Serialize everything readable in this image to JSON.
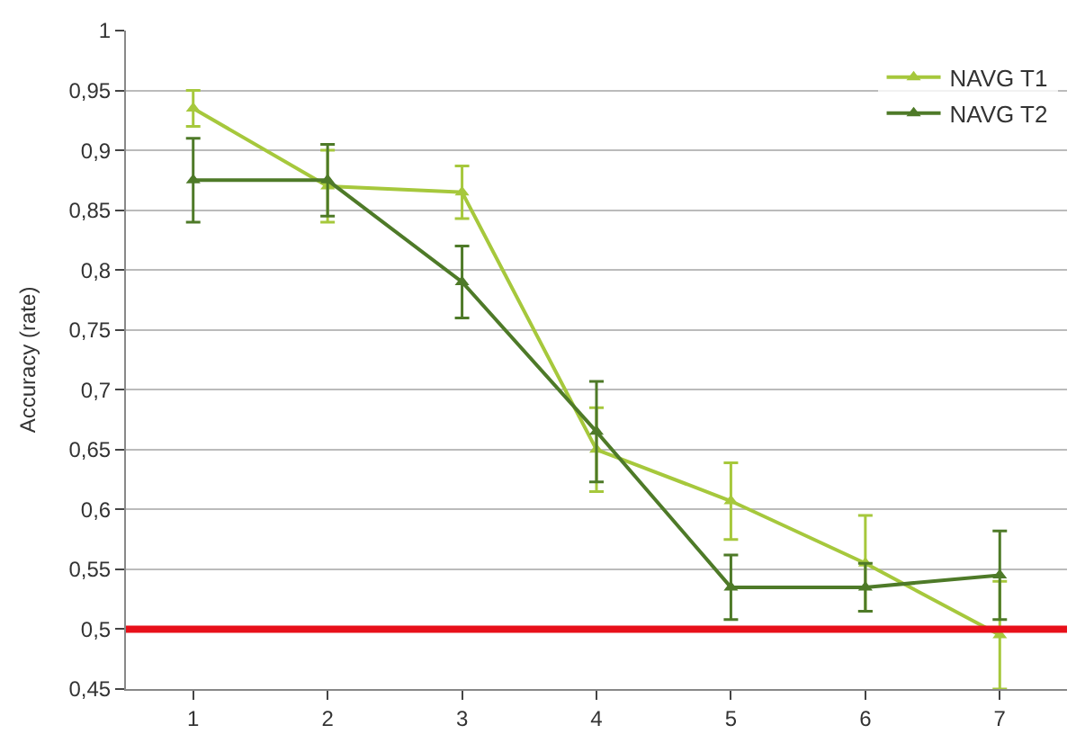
{
  "chart_data": {
    "type": "line",
    "ylabel": "Accuracy (rate)",
    "categories": [
      "1",
      "2",
      "3",
      "4",
      "5",
      "6",
      "7"
    ],
    "series": [
      {
        "name": "NAVG T1",
        "color": "#a6c83c",
        "values": [
          0.935,
          0.87,
          0.865,
          0.65,
          0.607,
          0.555,
          0.495
        ],
        "errors": [
          0.015,
          0.03,
          0.022,
          0.035,
          0.032,
          0.04,
          0.045
        ]
      },
      {
        "name": "NAVG T2",
        "color": "#4e7a28",
        "values": [
          0.875,
          0.875,
          0.79,
          0.665,
          0.535,
          0.535,
          0.545
        ],
        "errors": [
          0.035,
          0.03,
          0.03,
          0.042,
          0.027,
          0.02,
          0.037
        ]
      }
    ],
    "ylim": [
      0.45,
      1
    ],
    "yticks": [
      {
        "value": 0.45,
        "label": "0,45"
      },
      {
        "value": 0.5,
        "label": "0,5"
      },
      {
        "value": 0.55,
        "label": "0,55"
      },
      {
        "value": 0.6,
        "label": "0,6"
      },
      {
        "value": 0.65,
        "label": "0,65"
      },
      {
        "value": 0.7,
        "label": "0,7"
      },
      {
        "value": 0.75,
        "label": "0,75"
      },
      {
        "value": 0.8,
        "label": "0,8"
      },
      {
        "value": 0.85,
        "label": "0,85"
      },
      {
        "value": 0.9,
        "label": "0,9"
      },
      {
        "value": 0.95,
        "label": "0,95"
      },
      {
        "value": 1,
        "label": "1"
      }
    ],
    "ref_lines": [
      {
        "axis": "y",
        "value": 0.5,
        "color": "#e8101a"
      }
    ],
    "grid": "y",
    "legend": "top right",
    "marker": "triangle",
    "line_style": "solid"
  }
}
